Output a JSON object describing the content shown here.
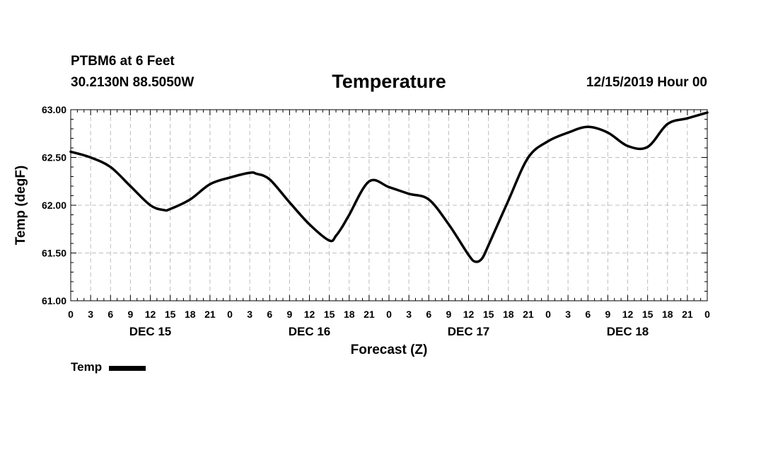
{
  "header": {
    "station": "PTBM6 at 6 Feet",
    "coords": "30.2130N 88.5050W",
    "title": "Temperature",
    "issued": "12/15/2019 Hour 00"
  },
  "chart_data": {
    "type": "line",
    "title": "Temperature",
    "xlabel": "Forecast (Z)",
    "ylabel": "Temp (degF)",
    "ylim": [
      61.0,
      63.0
    ],
    "xlim": [
      0,
      96
    ],
    "y_ticks": [
      "61.00",
      "61.50",
      "62.00",
      "62.50",
      "63.00"
    ],
    "y_tick_values": [
      61.0,
      61.5,
      62.0,
      62.5,
      63.0
    ],
    "x_tick_labels": [
      "0",
      "3",
      "6",
      "9",
      "12",
      "15",
      "18",
      "21",
      "0",
      "3",
      "6",
      "9",
      "12",
      "15",
      "18",
      "21",
      "0",
      "3",
      "6",
      "9",
      "12",
      "15",
      "18",
      "21",
      "0",
      "3",
      "6",
      "9",
      "12",
      "15",
      "18",
      "21",
      "0"
    ],
    "day_labels": [
      {
        "label": "DEC 15",
        "hour": 12
      },
      {
        "label": "DEC 16",
        "hour": 36
      },
      {
        "label": "DEC 17",
        "hour": 60
      },
      {
        "label": "DEC 18",
        "hour": 84
      }
    ],
    "grid": true,
    "legend_position": "bottom-left",
    "series": [
      {
        "name": "Temp",
        "color": "#000000",
        "x": [
          0,
          3,
          6,
          9,
          12,
          14,
          15,
          18,
          21,
          24,
          27,
          28,
          30,
          33,
          36,
          39,
          40,
          41,
          42,
          45,
          48,
          51,
          54,
          57,
          60,
          61,
          62,
          63,
          66,
          69,
          72,
          75,
          78,
          81,
          84,
          87,
          90,
          93,
          96
        ],
        "values": [
          62.56,
          62.5,
          62.4,
          62.2,
          62.0,
          61.95,
          61.96,
          62.06,
          62.22,
          62.29,
          62.34,
          62.33,
          62.27,
          62.03,
          61.8,
          61.63,
          61.68,
          61.78,
          61.9,
          62.25,
          62.19,
          62.12,
          62.06,
          61.8,
          61.48,
          61.41,
          61.44,
          61.58,
          62.05,
          62.5,
          62.67,
          62.76,
          62.82,
          62.76,
          62.62,
          62.61,
          62.85,
          62.91,
          62.97
        ]
      }
    ]
  }
}
